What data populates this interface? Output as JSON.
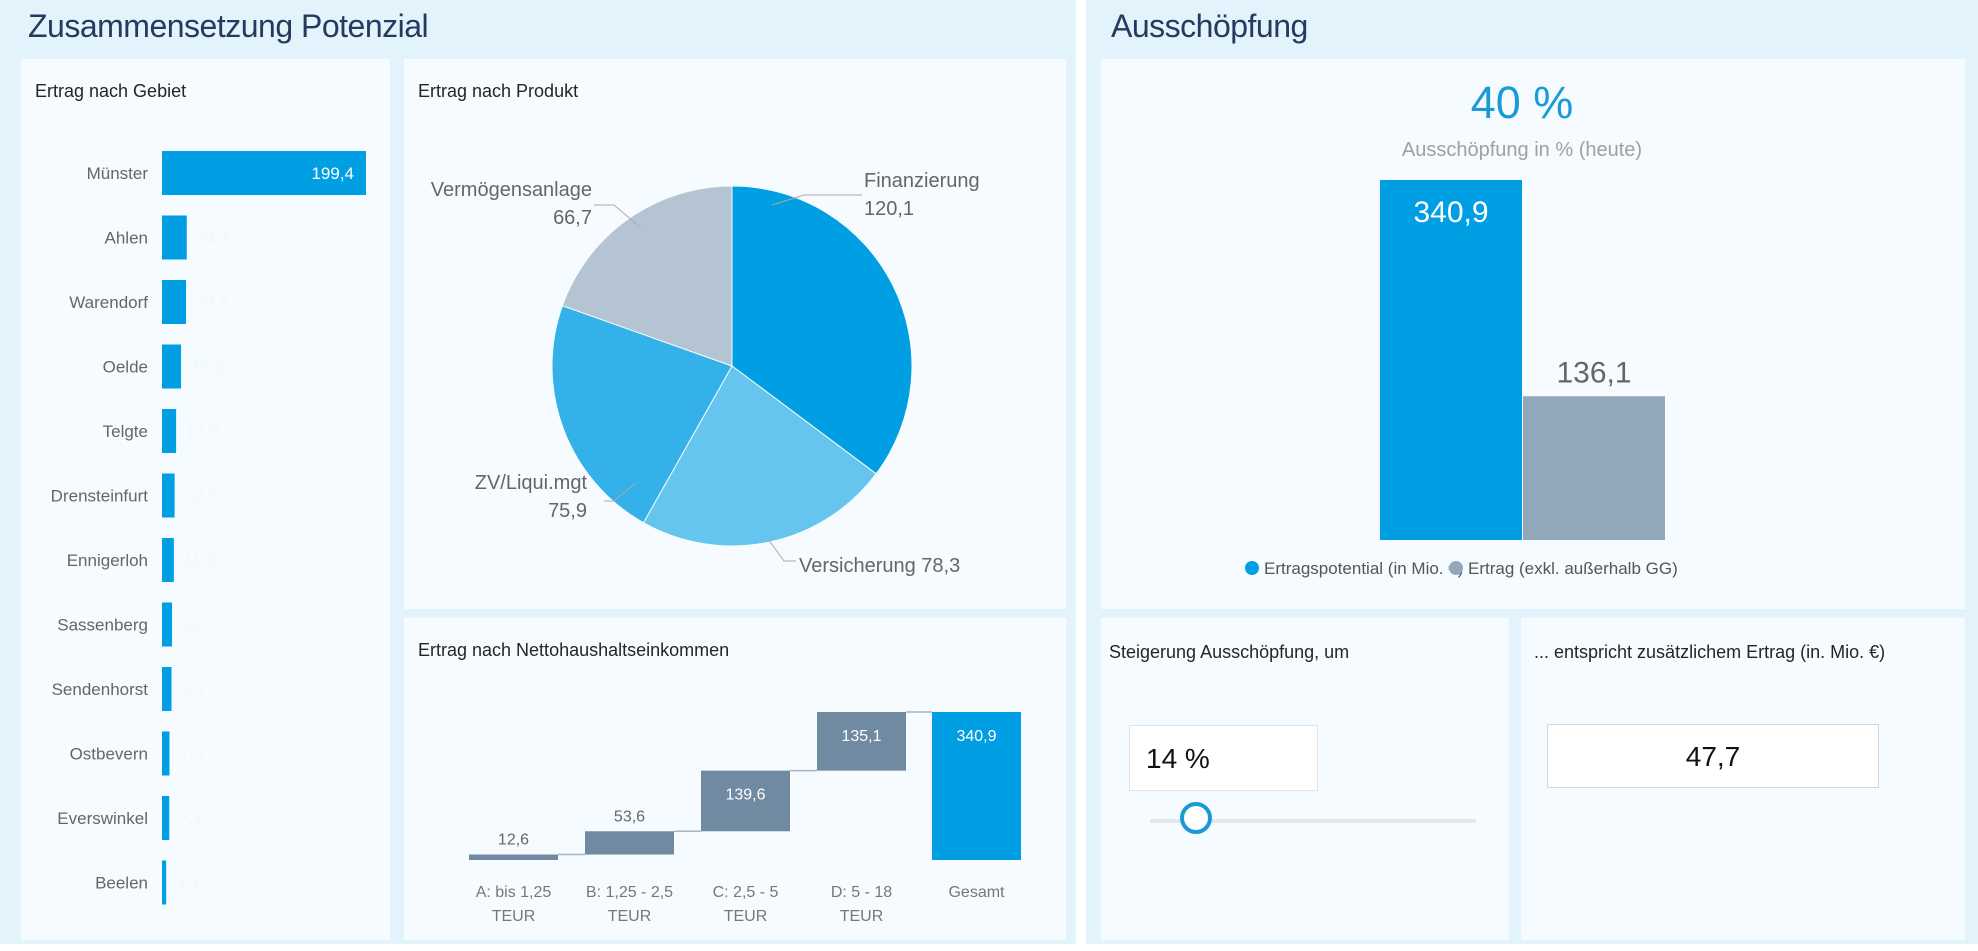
{
  "left_section": {
    "title": "Zusammensetzung Potenzial"
  },
  "right_section": {
    "title": "Ausschöpfung"
  },
  "colors": {
    "accent": "#009fe3",
    "gray_bar": "#92a8ba",
    "waterfall": "#6f8aa1",
    "section_bg": "#e3f3fb",
    "card_bg": "#f5fbfe"
  },
  "chart_data": [
    {
      "type": "bar",
      "orientation": "horizontal",
      "title": "Ertrag nach Gebiet",
      "categories": [
        "Münster",
        "Ahlen",
        "Warendorf",
        "Oelde",
        "Telgte",
        "Drensteinfurt",
        "Ennigerloh",
        "Sassenberg",
        "Sendenhorst",
        "Ostbevern",
        "Everswinkel",
        "Beelen"
      ],
      "values": [
        199.4,
        24.2,
        23.5,
        18.6,
        13.8,
        12.3,
        11.6,
        9.8,
        9.3,
        7.3,
        7.1,
        4.1
      ],
      "data_labels": [
        "199,4",
        "24,2",
        "23,5",
        "18,6",
        "13,8",
        "12,3",
        "11,6",
        "9,8",
        "9,3",
        "7,3",
        "7,1",
        "4,1"
      ],
      "color": "#009fe3"
    },
    {
      "type": "pie",
      "title": "Ertrag nach Produkt",
      "slices": [
        {
          "label": "Finanzierung",
          "value": 120.1,
          "value_label": "120,1",
          "color": "#009fe3"
        },
        {
          "label": "Versicherung",
          "value": 78.3,
          "value_label": "78,3",
          "color": "#66c5ee"
        },
        {
          "label": "ZV/Liqui.mgt",
          "value": 75.9,
          "value_label": "75,9",
          "color": "#33b1e8"
        },
        {
          "label": "Vermögensanlage",
          "value": 66.7,
          "value_label": "66,7",
          "color": "#b4c4d2"
        }
      ]
    },
    {
      "type": "bar",
      "subtype": "waterfall",
      "title": "Ertrag nach Nettohaushaltseinkommen",
      "categories": [
        [
          "A: bis 1,25",
          "TEUR"
        ],
        [
          "B: 1,25 - 2,5",
          "TEUR"
        ],
        [
          "C: 2,5 - 5",
          "TEUR"
        ],
        [
          "D: 5 - 18",
          "TEUR"
        ],
        [
          "Gesamt",
          ""
        ]
      ],
      "values": [
        12.6,
        53.6,
        139.6,
        135.1,
        340.9
      ],
      "data_labels": [
        "12,6",
        "53,6",
        "139,6",
        "135,1",
        "340,9"
      ],
      "total_index": 4
    },
    {
      "type": "bar",
      "title": "",
      "categories": [
        "Ertragspotential (in Mio. €)",
        "Ertrag (exkl. außerhalb GG)"
      ],
      "values": [
        340.9,
        136.1
      ],
      "data_labels": [
        "340,9",
        "136,1"
      ],
      "colors": [
        "#009fe3",
        "#92a8ba"
      ],
      "legend": "bottom"
    }
  ],
  "kpi": {
    "value": "40 %",
    "label": "Ausschöpfung in % (heute)"
  },
  "steigerung": {
    "title": "Steigerung Ausschöpfung, um",
    "value": "14 %",
    "slider_value_percent": 14
  },
  "zusatz": {
    "title": "... entspricht zusätzlichem Ertrag (in. Mio. €)",
    "value": "47,7"
  }
}
